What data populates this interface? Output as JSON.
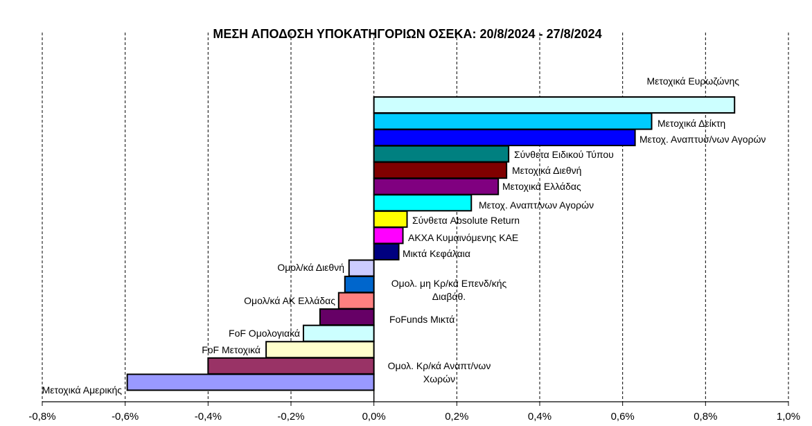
{
  "chart_data": {
    "type": "bar",
    "orientation": "horizontal",
    "title": "ΜΕΣΗ ΑΠΟΔΟΣΗ ΥΠΟΚΑΤΗΓΟΡΙΩΝ ΟΣΕΚΑ: 20/8/2024 - 27/8/2024",
    "xlim": [
      -0.8,
      1.0
    ],
    "xticks": [
      "-0,8%",
      "-0,6%",
      "-0,4%",
      "-0,2%",
      "0,0%",
      "0,2%",
      "0,4%",
      "0,6%",
      "0,8%",
      "1,0%"
    ],
    "grid": "vertical dashed",
    "categories": [
      {
        "label": [
          "Μετοχικά Ευρωζώνης"
        ],
        "value": 0.87,
        "color": "#CCFFFF"
      },
      {
        "label": [
          "Μετοχικά Δείκτη"
        ],
        "value": 0.67,
        "color": "#00CCFF"
      },
      {
        "label": [
          "Μετοχ. Αναπτυσ/νων Αγορών"
        ],
        "value": 0.63,
        "color": "#0000FF"
      },
      {
        "label": [
          "Σύνθετα Ειδικού Τύπου"
        ],
        "value": 0.325,
        "color": "#008080"
      },
      {
        "label": [
          "Μετοχικά Διεθνή"
        ],
        "value": 0.32,
        "color": "#800000"
      },
      {
        "label": [
          "Μετοχικά Ελλάδας"
        ],
        "value": 0.3,
        "color": "#800080"
      },
      {
        "label": [
          "Μετοχ. Αναπτ/νων Αγορών"
        ],
        "value": 0.235,
        "color": "#00FFFF"
      },
      {
        "label": [
          "Σύνθετα Absolute  Return"
        ],
        "value": 0.08,
        "color": "#FFFF00"
      },
      {
        "label": [
          "ΑΚΧΑ Κυμαινόμενης  ΚΑΕ"
        ],
        "value": 0.07,
        "color": "#FF00FF"
      },
      {
        "label": [
          "Μικτά  Κεφάλαια"
        ],
        "value": 0.06,
        "color": "#000080"
      },
      {
        "label": [
          "Ομολ/κά Διεθνή"
        ],
        "value": -0.06,
        "color": "#CCCCFF"
      },
      {
        "label": [
          "Ομολ. μη Κρ/κά Επενδ/κής",
          "Διαβάθ."
        ],
        "value": -0.07,
        "color": "#0066CC"
      },
      {
        "label": [
          "Ομολ/κά ΑΚ Ελλάδας"
        ],
        "value": -0.085,
        "color": "#FF8080"
      },
      {
        "label": [
          "FoFunds Μικτά"
        ],
        "value": -0.13,
        "color": "#660066"
      },
      {
        "label": [
          "FoF Ομολογιακά"
        ],
        "value": -0.17,
        "color": "#CCFFFF"
      },
      {
        "label": [
          "FoF Μετοχικά"
        ],
        "value": -0.26,
        "color": "#FFFFCC"
      },
      {
        "label": [
          "Ομολ. Κρ/κά Αναπτ/νων",
          "Χωρών"
        ],
        "value": -0.4,
        "color": "#993366"
      },
      {
        "label": [
          "Μετοχικά Αμερικής"
        ],
        "value": -0.595,
        "color": "#9999FF"
      }
    ]
  }
}
